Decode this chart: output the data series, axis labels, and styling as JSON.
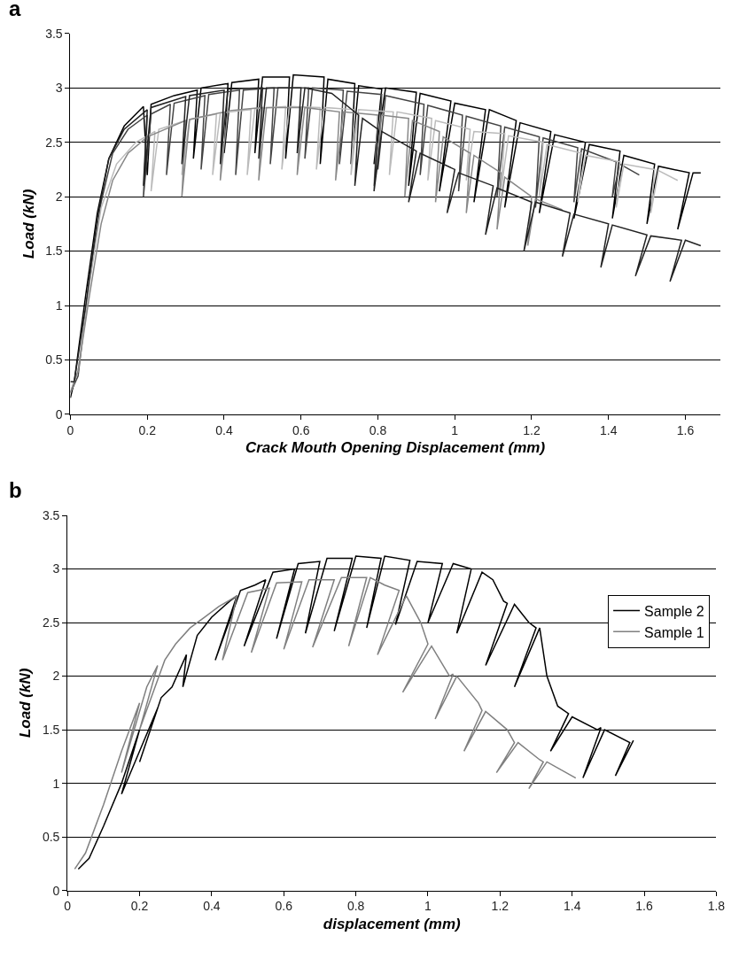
{
  "chart_data": [
    {
      "type": "line",
      "title": "a",
      "xlabel": "Crack Mouth Opening Displacement (mm)",
      "ylabel": "Load (kN)",
      "xlim": [
        0,
        1.69
      ],
      "ylim": [
        0,
        3.5
      ],
      "xticks": [
        0,
        0.2,
        0.4,
        0.6,
        0.8,
        1,
        1.2,
        1.4,
        1.6
      ],
      "yticks": [
        0,
        0.5,
        1,
        1.5,
        2,
        2.5,
        3,
        3.5
      ],
      "grid": "y",
      "legend": false,
      "marker": "none",
      "line_style": "solid",
      "series": [
        {
          "color": "#000000",
          "x": [
            0,
            0.01,
            0.04,
            0.07,
            0.1,
            0.14,
            0.19,
            0.2,
            0.21,
            0.27,
            0.33,
            0.32,
            0.34,
            0.41,
            0.4,
            0.42,
            0.49,
            0.48,
            0.5,
            0.57,
            0.56,
            0.58,
            0.66,
            0.65,
            0.67,
            0.74,
            0.73,
            0.75,
            0.81,
            0.79,
            0.82,
            0.9,
            0.88,
            0.91,
            0.99,
            0.96,
            1.0,
            1.08,
            1.05,
            1.09,
            1.16,
            1.13,
            1.17,
            1.25,
            1.22,
            1.26,
            1.34,
            1.31,
            1.35,
            1.43,
            1.41,
            1.44,
            1.52,
            1.5,
            1.53,
            1.61,
            1.58,
            1.62,
            1.64
          ],
          "values": [
            0.15,
            0.3,
            1.1,
            1.85,
            2.35,
            2.65,
            2.83,
            2.2,
            2.85,
            2.93,
            2.98,
            2.35,
            3.0,
            3.04,
            2.4,
            3.05,
            3.08,
            2.4,
            3.1,
            3.1,
            2.35,
            3.12,
            3.1,
            2.3,
            3.08,
            3.04,
            2.3,
            3.02,
            2.99,
            2.3,
            3.0,
            2.96,
            2.1,
            2.95,
            2.88,
            2.05,
            2.86,
            2.8,
            1.95,
            2.8,
            2.7,
            1.9,
            2.68,
            2.6,
            1.85,
            2.57,
            2.5,
            1.8,
            2.48,
            2.42,
            1.8,
            2.38,
            2.3,
            1.75,
            2.28,
            2.22,
            1.7,
            2.22,
            2.22
          ]
        },
        {
          "color": "#444444",
          "x": [
            0,
            0.02,
            0.05,
            0.08,
            0.11,
            0.15,
            0.2,
            0.19,
            0.21,
            0.26,
            0.25,
            0.27,
            0.35,
            0.34,
            0.36,
            0.44,
            0.43,
            0.45,
            0.53,
            0.52,
            0.54,
            0.62,
            0.61,
            0.63,
            0.71,
            0.7,
            0.72,
            0.81,
            0.8,
            0.82,
            0.92,
            0.91,
            0.93,
            1.02,
            1.01,
            1.03,
            1.12,
            1.11,
            1.13,
            1.22,
            1.21,
            1.23,
            1.32,
            1.31,
            1.33,
            1.42,
            1.41,
            1.43,
            1.48
          ],
          "values": [
            0.2,
            0.35,
            1.25,
            1.95,
            2.4,
            2.62,
            2.75,
            2.0,
            2.76,
            2.85,
            2.2,
            2.86,
            2.93,
            2.25,
            2.94,
            2.98,
            2.2,
            2.98,
            3.0,
            2.3,
            3.0,
            3.0,
            2.35,
            3.0,
            2.98,
            2.3,
            2.97,
            2.94,
            2.25,
            2.93,
            2.85,
            2.2,
            2.84,
            2.75,
            2.05,
            2.74,
            2.65,
            2.0,
            2.64,
            2.55,
            1.9,
            2.54,
            2.45,
            1.95,
            2.44,
            2.32,
            2.0,
            2.3,
            2.2
          ]
        },
        {
          "color": "#bbbbbb",
          "x": [
            0,
            0.02,
            0.05,
            0.08,
            0.12,
            0.17,
            0.22,
            0.21,
            0.23,
            0.3,
            0.29,
            0.31,
            0.38,
            0.37,
            0.39,
            0.47,
            0.46,
            0.48,
            0.56,
            0.55,
            0.57,
            0.65,
            0.64,
            0.66,
            0.74,
            0.73,
            0.75,
            0.84,
            0.83,
            0.85,
            0.94,
            0.93,
            0.95,
            1.04,
            1.03,
            1.05,
            1.13,
            1.12,
            1.14,
            1.23,
            1.22,
            1.24,
            1.33,
            1.32,
            1.34,
            1.43,
            1.42,
            1.44,
            1.52,
            1.51,
            1.53,
            1.58
          ],
          "values": [
            0.2,
            0.4,
            1.2,
            1.9,
            2.3,
            2.5,
            2.6,
            2.05,
            2.62,
            2.7,
            2.2,
            2.71,
            2.76,
            2.2,
            2.77,
            2.8,
            2.2,
            2.81,
            2.83,
            2.25,
            2.83,
            2.82,
            2.25,
            2.82,
            2.8,
            2.2,
            2.8,
            2.78,
            2.2,
            2.78,
            2.72,
            2.15,
            2.7,
            2.62,
            2.15,
            2.6,
            2.58,
            2.05,
            2.56,
            2.5,
            2.0,
            2.48,
            2.4,
            1.95,
            2.38,
            2.32,
            1.9,
            2.3,
            2.25,
            1.85,
            2.24,
            2.15
          ]
        },
        {
          "color": "#888888",
          "x": [
            0,
            0.02,
            0.05,
            0.08,
            0.11,
            0.15,
            0.2,
            0.3,
            0.29,
            0.31,
            0.4,
            0.39,
            0.41,
            0.5,
            0.49,
            0.51,
            0.6,
            0.59,
            0.61,
            0.7,
            0.69,
            0.71,
            0.8,
            0.79,
            0.81,
            0.88,
            0.87,
            0.89,
            0.96,
            0.95,
            0.97,
            1.04,
            1.03,
            1.05,
            1.12,
            1.11,
            1.13,
            1.2,
            1.19,
            1.21,
            1.28
          ],
          "values": [
            0.2,
            0.4,
            1.1,
            1.75,
            2.15,
            2.4,
            2.55,
            2.7,
            2.0,
            2.71,
            2.78,
            2.15,
            2.79,
            2.82,
            2.15,
            2.82,
            2.82,
            2.2,
            2.82,
            2.78,
            2.15,
            2.78,
            2.75,
            2.1,
            2.75,
            2.72,
            2.0,
            2.7,
            2.6,
            1.95,
            2.55,
            2.4,
            1.85,
            2.38,
            2.22,
            1.7,
            2.18,
            2.0,
            1.55,
            1.98,
            1.88
          ]
        },
        {
          "color": "#222222",
          "x": [
            0,
            0.01,
            0.04,
            0.07,
            0.1,
            0.14,
            0.2,
            0.19,
            0.21,
            0.3,
            0.29,
            0.31,
            0.4,
            0.39,
            0.41,
            0.5,
            0.49,
            0.51,
            0.6,
            0.59,
            0.61,
            0.68,
            0.75,
            0.74,
            0.76,
            0.8,
            0.79,
            0.81,
            0.9,
            0.88,
            0.91,
            1.0,
            0.98,
            1.01,
            1.1,
            1.08,
            1.11,
            1.2,
            1.18,
            1.21,
            1.3,
            1.28,
            1.31,
            1.4,
            1.38,
            1.41,
            1.5,
            1.47,
            1.51,
            1.59,
            1.56,
            1.6,
            1.64
          ],
          "values": [
            0.3,
            0.3,
            1.0,
            1.8,
            2.35,
            2.62,
            2.8,
            2.1,
            2.82,
            2.92,
            2.3,
            2.93,
            2.98,
            2.3,
            2.99,
            3.0,
            2.35,
            3.0,
            3.0,
            2.4,
            3.0,
            2.95,
            2.75,
            2.1,
            2.72,
            2.62,
            2.05,
            2.6,
            2.42,
            1.95,
            2.4,
            2.25,
            1.85,
            2.22,
            2.1,
            1.65,
            2.08,
            1.95,
            1.5,
            1.95,
            1.85,
            1.45,
            1.84,
            1.75,
            1.35,
            1.74,
            1.65,
            1.27,
            1.64,
            1.6,
            1.22,
            1.6,
            1.55
          ]
        }
      ]
    },
    {
      "type": "line",
      "title": "b",
      "xlabel": "displacement (mm)",
      "ylabel": "Load (kN)",
      "xlim": [
        0,
        1.8
      ],
      "ylim": [
        0,
        3.5
      ],
      "xticks": [
        0,
        0.2,
        0.4,
        0.6,
        0.8,
        1,
        1.2,
        1.4,
        1.6,
        1.8
      ],
      "yticks": [
        0,
        0.5,
        1,
        1.5,
        2,
        2.5,
        3,
        3.5
      ],
      "grid": "y",
      "legend": "top right",
      "marker": "none",
      "line_style": "solid",
      "series": [
        {
          "name": "Sample 2",
          "color": "#000000",
          "x": [
            0.03,
            0.06,
            0.1,
            0.15,
            0.2,
            0.15,
            0.2,
            0.25,
            0.2,
            0.26,
            0.29,
            0.33,
            0.32,
            0.36,
            0.4,
            0.45,
            0.47,
            0.41,
            0.48,
            0.52,
            0.55,
            0.49,
            0.57,
            0.63,
            0.58,
            0.64,
            0.7,
            0.66,
            0.72,
            0.79,
            0.74,
            0.8,
            0.87,
            0.83,
            0.88,
            0.95,
            0.91,
            0.97,
            1.04,
            1.0,
            1.07,
            1.12,
            1.08,
            1.15,
            1.18,
            1.21,
            1.22,
            1.16,
            1.24,
            1.28,
            1.3,
            1.24,
            1.31,
            1.33,
            1.36,
            1.39,
            1.34,
            1.4,
            1.47,
            1.48,
            1.43,
            1.49,
            1.56,
            1.52,
            1.57
          ],
          "values": [
            0.2,
            0.3,
            0.6,
            1.0,
            1.5,
            0.9,
            1.3,
            1.7,
            1.2,
            1.8,
            1.9,
            2.2,
            1.9,
            2.38,
            2.55,
            2.7,
            2.75,
            2.15,
            2.8,
            2.85,
            2.9,
            2.28,
            2.97,
            3.0,
            2.35,
            3.05,
            3.07,
            2.4,
            3.1,
            3.1,
            2.42,
            3.12,
            3.1,
            2.45,
            3.12,
            3.08,
            2.48,
            3.07,
            3.05,
            2.5,
            3.05,
            3.0,
            2.4,
            2.97,
            2.9,
            2.7,
            2.68,
            2.1,
            2.67,
            2.5,
            2.45,
            1.9,
            2.45,
            2.0,
            1.72,
            1.65,
            1.3,
            1.62,
            1.5,
            1.52,
            1.05,
            1.5,
            1.38,
            1.07,
            1.4
          ]
        },
        {
          "name": "Sample 1",
          "color": "#808080",
          "x": [
            0.02,
            0.05,
            0.1,
            0.15,
            0.2,
            0.15,
            0.22,
            0.25,
            0.2,
            0.27,
            0.3,
            0.34,
            0.38,
            0.42,
            0.47,
            0.43,
            0.5,
            0.56,
            0.51,
            0.58,
            0.65,
            0.6,
            0.67,
            0.74,
            0.68,
            0.76,
            0.83,
            0.78,
            0.84,
            0.88,
            0.92,
            0.86,
            0.94,
            0.98,
            1.0,
            0.93,
            1.01,
            1.06,
            1.07,
            1.02,
            1.08,
            1.14,
            1.15,
            1.1,
            1.16,
            1.22,
            1.24,
            1.19,
            1.25,
            1.31,
            1.32,
            1.28,
            1.33,
            1.41
          ],
          "values": [
            0.2,
            0.35,
            0.8,
            1.3,
            1.75,
            1.1,
            1.9,
            2.1,
            1.5,
            2.15,
            2.3,
            2.45,
            2.55,
            2.65,
            2.75,
            2.15,
            2.78,
            2.82,
            2.22,
            2.87,
            2.88,
            2.25,
            2.9,
            2.9,
            2.27,
            2.92,
            2.92,
            2.28,
            2.92,
            2.85,
            2.8,
            2.2,
            2.75,
            2.5,
            2.3,
            1.85,
            2.28,
            2.0,
            2.02,
            1.6,
            2.0,
            1.75,
            1.68,
            1.3,
            1.67,
            1.5,
            1.38,
            1.1,
            1.38,
            1.22,
            1.2,
            0.95,
            1.2,
            1.05
          ]
        }
      ]
    }
  ]
}
